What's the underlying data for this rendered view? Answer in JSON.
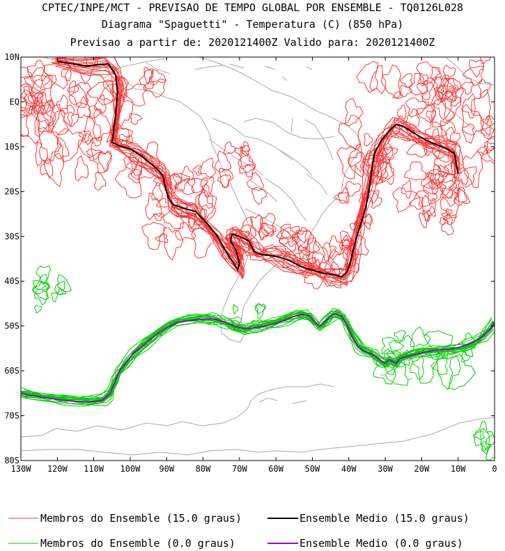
{
  "chart_data": {
    "type": "line",
    "title": "CPTEC/INPE/MCT - PREVISAO DE TEMPO GLOBAL POR ENSEMBLE - TQ0126L028",
    "subtitle": "Diagrama \"Spaguetti\" - Temperatura (C) (850 hPa)",
    "subtitle2": "Previsao a partir de: 2020121400Z  Valido para: 2020121400Z",
    "xlabel": "",
    "ylabel": "",
    "xlim": [
      -130,
      0
    ],
    "ylim": [
      -80,
      10
    ],
    "x_ticks": [
      {
        "v": -130,
        "label": "130W"
      },
      {
        "v": -120,
        "label": "120W"
      },
      {
        "v": -110,
        "label": "110W"
      },
      {
        "v": -100,
        "label": "100W"
      },
      {
        "v": -90,
        "label": "90W"
      },
      {
        "v": -80,
        "label": "80W"
      },
      {
        "v": -70,
        "label": "70W"
      },
      {
        "v": -60,
        "label": "60W"
      },
      {
        "v": -50,
        "label": "50W"
      },
      {
        "v": -40,
        "label": "40W"
      },
      {
        "v": -30,
        "label": "30W"
      },
      {
        "v": -20,
        "label": "20W"
      },
      {
        "v": -10,
        "label": "10W"
      },
      {
        "v": 0,
        "label": "0"
      }
    ],
    "y_ticks": [
      {
        "v": 10,
        "label": "10N"
      },
      {
        "v": 0,
        "label": "EQ"
      },
      {
        "v": -10,
        "label": "10S"
      },
      {
        "v": -20,
        "label": "20S"
      },
      {
        "v": -30,
        "label": "30S"
      },
      {
        "v": -40,
        "label": "40S"
      },
      {
        "v": -50,
        "label": "50S"
      },
      {
        "v": -60,
        "label": "60S"
      },
      {
        "v": -70,
        "label": "70S"
      },
      {
        "v": -80,
        "label": "80S"
      }
    ],
    "series": [
      {
        "name": "Ensemble Medio (15.0 graus)",
        "color": "#000000",
        "lon": [
          -120,
          -112,
          -106,
          -104,
          -103.5,
          -104,
          -105,
          -103,
          -100,
          -97,
          -94,
          -92,
          -91,
          -90.5,
          -89.5,
          -88,
          -85,
          -82,
          -79,
          -76,
          -74,
          -72,
          -70.5,
          -70,
          -71,
          -72.5,
          -72,
          -70,
          -67.5,
          -66.5,
          -66,
          -65,
          -64,
          -62,
          -59,
          -56,
          -53,
          -50,
          -47,
          -44,
          -42,
          -40.5,
          -39.5,
          -38.5,
          -37,
          -35.5,
          -34.5,
          -34,
          -33.5,
          -33,
          -31,
          -29,
          -27,
          -25,
          -23,
          -21,
          -19,
          -16,
          -13,
          -11,
          -10.5,
          -10
        ],
        "lat": [
          9,
          8,
          8.5,
          6,
          2,
          -3,
          -9,
          -9.8,
          -10.5,
          -12,
          -14,
          -15.5,
          -16.5,
          -18.5,
          -21.5,
          -23,
          -23.8,
          -24.5,
          -27,
          -30,
          -33,
          -35.5,
          -37.5,
          -36,
          -33,
          -31,
          -29.5,
          -30,
          -31,
          -32.5,
          -33.3,
          -33.8,
          -34,
          -34.2,
          -34.6,
          -35.5,
          -36.8,
          -37.5,
          -38.2,
          -38.6,
          -39,
          -38,
          -35.5,
          -32,
          -28,
          -24,
          -20,
          -17,
          -14,
          -11.5,
          -8.5,
          -6.5,
          -5,
          -5.5,
          -6.5,
          -7.5,
          -8.5,
          -9.5,
          -10.5,
          -11.5,
          -14,
          -16
        ]
      },
      {
        "name": "Ensemble Medio (0.0 graus)",
        "color": "#9900cc",
        "lon": [
          -130,
          -127,
          -123,
          -119,
          -115,
          -111,
          -107.5,
          -105.5,
          -104,
          -103,
          -101,
          -99,
          -96,
          -93,
          -90,
          -87,
          -84,
          -81,
          -78.5,
          -76.5,
          -75,
          -73.5,
          -72.5,
          -71.5,
          -70,
          -68,
          -66,
          -63,
          -60,
          -57.5,
          -55,
          -53,
          -51,
          -49.5,
          -48,
          -46.5,
          -45,
          -43.5,
          -42,
          -40.5,
          -39,
          -37.5,
          -36,
          -34.5,
          -33,
          -32,
          -31,
          -30,
          -29,
          -28,
          -27,
          -26,
          -24.5,
          -23,
          -21,
          -19,
          -17,
          -14.5,
          -12,
          -9.5,
          -7,
          -5,
          -3,
          -1,
          0
        ],
        "lat": [
          -65,
          -65.5,
          -66,
          -66.5,
          -66.8,
          -66.9,
          -66.5,
          -65,
          -62,
          -60,
          -58,
          -56,
          -54,
          -52,
          -50.3,
          -49.2,
          -48.8,
          -48.5,
          -48.4,
          -48.5,
          -48.9,
          -49.2,
          -49.6,
          -50,
          -50.4,
          -50.6,
          -50.4,
          -50,
          -49.4,
          -48.7,
          -47.8,
          -47.4,
          -47.7,
          -48.9,
          -50,
          -49,
          -47.7,
          -47.2,
          -47.8,
          -49.8,
          -52.5,
          -54.5,
          -55.5,
          -56,
          -56.5,
          -57.2,
          -57.8,
          -58.2,
          -57.5,
          -57.9,
          -58.3,
          -57.3,
          -56.9,
          -56.6,
          -56.2,
          -55.8,
          -55.5,
          -55.3,
          -55.1,
          -54.7,
          -54,
          -53.3,
          -52.1,
          -50.5,
          -49.2
        ]
      }
    ],
    "legend": [
      {
        "label": "Membros do Ensemble (15.0 graus)",
        "color": "#ff3333"
      },
      {
        "label": "Ensemble Medio (15.0 graus)",
        "color": "#000000"
      },
      {
        "label": "Membros do Ensemble (0.0 graus)",
        "color": "#00cc00"
      },
      {
        "label": "Ensemble Medio (0.0 graus)",
        "color": "#9900cc"
      }
    ],
    "member_colors": {
      "warm": "#ff3333",
      "cold": "#00cc00",
      "coast": "#a8a8a8"
    }
  }
}
